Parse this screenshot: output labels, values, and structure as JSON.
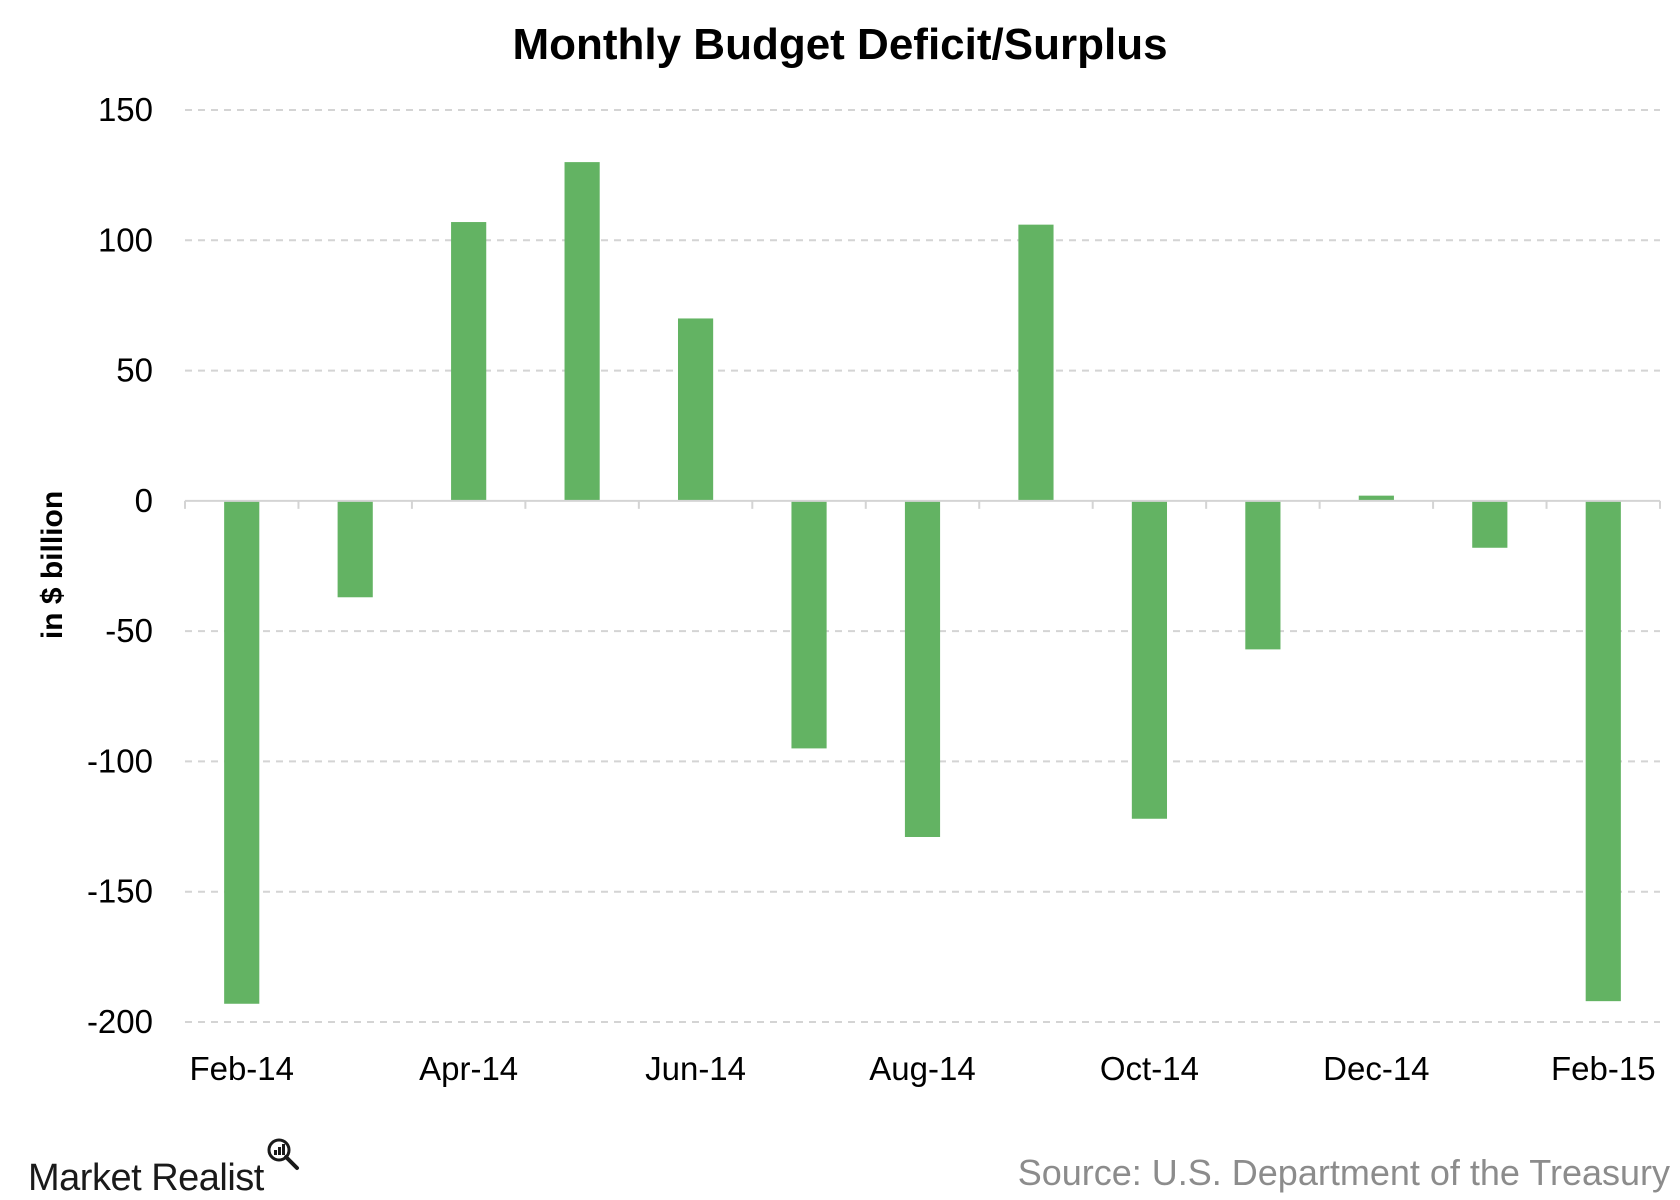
{
  "chart_data": {
    "type": "bar",
    "title": "Monthly Budget Deficit/Surplus",
    "ylabel": "in $ billion",
    "xlabel": "",
    "ylim": [
      -200,
      150
    ],
    "yticks": [
      150,
      100,
      50,
      0,
      -50,
      -100,
      -150,
      -200
    ],
    "categories": [
      "Feb-14",
      "Mar-14",
      "Apr-14",
      "May-14",
      "Jun-14",
      "Jul-14",
      "Aug-14",
      "Sep-14",
      "Oct-14",
      "Nov-14",
      "Dec-14",
      "Jan-15",
      "Feb-15"
    ],
    "x_tick_labels": [
      "Feb-14",
      "",
      "Apr-14",
      "",
      "Jun-14",
      "",
      "Aug-14",
      "",
      "Oct-14",
      "",
      "Dec-14",
      "",
      "Feb-15"
    ],
    "values": [
      -193,
      -37,
      107,
      130,
      70,
      -95,
      -129,
      106,
      -122,
      -57,
      2,
      -18,
      -192
    ],
    "grid": true,
    "colors": {
      "bar": "#63b363",
      "grid": "#d4d4d4",
      "axis": "#d4d4d4"
    }
  },
  "branding": {
    "logo_text": "Market Realist",
    "logo_icon": "magnifier-chart-icon"
  },
  "source": "Source: U.S. Department of the Treasury"
}
